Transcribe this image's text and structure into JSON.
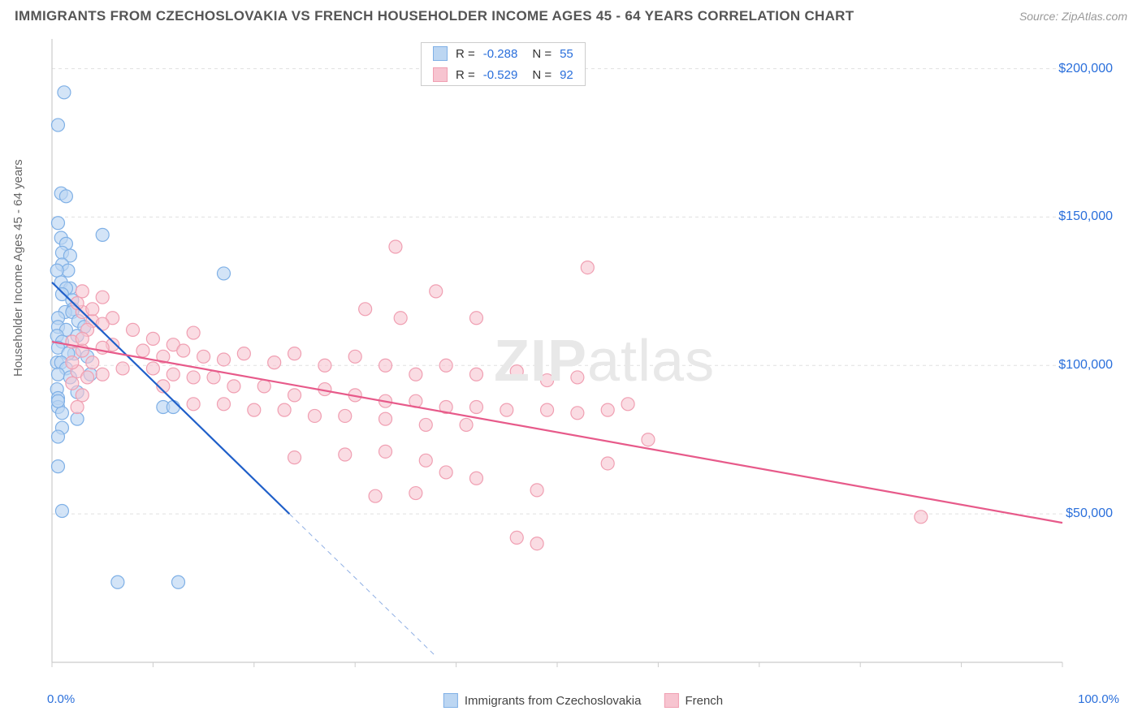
{
  "title": "IMMIGRANTS FROM CZECHOSLOVAKIA VS FRENCH HOUSEHOLDER INCOME AGES 45 - 64 YEARS CORRELATION CHART",
  "source": "Source: ZipAtlas.com",
  "ylabel": "Householder Income Ages 45 - 64 years",
  "watermark_bold": "ZIP",
  "watermark_rest": "atlas",
  "chart": {
    "type": "scatter",
    "background_color": "#ffffff",
    "grid_color": "#e0e0e0",
    "grid_dash": "4,4",
    "axis_color": "#cccccc",
    "xlim": [
      0,
      100
    ],
    "ylim": [
      0,
      210000
    ],
    "x_ticks_minor": [
      0,
      10,
      20,
      30,
      40,
      50,
      60,
      70,
      80,
      90,
      100
    ],
    "x_ticks_labeled": [
      {
        "v": 0,
        "label": "0.0%"
      },
      {
        "v": 100,
        "label": "100.0%"
      }
    ],
    "y_ticks": [
      {
        "v": 50000,
        "label": "$50,000"
      },
      {
        "v": 100000,
        "label": "$100,000"
      },
      {
        "v": 150000,
        "label": "$150,000"
      },
      {
        "v": 200000,
        "label": "$200,000"
      }
    ],
    "series": [
      {
        "name": "Immigrants from Czechoslovakia",
        "short": "series_a",
        "color_fill": "#bcd6f2",
        "color_stroke": "#7fb0e6",
        "line_color": "#1f5fc9",
        "line_width": 2.2,
        "marker_radius": 8,
        "marker_opacity": 0.65,
        "stats": {
          "R": "-0.288",
          "N": "55"
        },
        "trend": {
          "x1": 0,
          "y1": 128000,
          "x2": 23.5,
          "y2": 50000,
          "extend_x2": 38,
          "extend_y2": 2000
        },
        "points": [
          [
            1.2,
            192000
          ],
          [
            0.6,
            181000
          ],
          [
            0.9,
            158000
          ],
          [
            1.4,
            157000
          ],
          [
            0.6,
            148000
          ],
          [
            5.0,
            144000
          ],
          [
            0.9,
            143000
          ],
          [
            1.4,
            141000
          ],
          [
            1.0,
            138000
          ],
          [
            1.8,
            137000
          ],
          [
            1.0,
            134000
          ],
          [
            1.6,
            132000
          ],
          [
            0.5,
            132000
          ],
          [
            17.0,
            131000
          ],
          [
            0.9,
            128000
          ],
          [
            1.8,
            126000
          ],
          [
            1.4,
            126000
          ],
          [
            1.0,
            124000
          ],
          [
            2.0,
            122000
          ],
          [
            2.1,
            119000
          ],
          [
            1.3,
            118000
          ],
          [
            2.0,
            118000
          ],
          [
            0.6,
            116000
          ],
          [
            2.6,
            115000
          ],
          [
            3.2,
            113000
          ],
          [
            0.6,
            113000
          ],
          [
            1.4,
            112000
          ],
          [
            0.5,
            110000
          ],
          [
            2.5,
            110000
          ],
          [
            1.0,
            108000
          ],
          [
            0.6,
            106000
          ],
          [
            2.2,
            104000
          ],
          [
            1.6,
            104000
          ],
          [
            3.5,
            103000
          ],
          [
            0.5,
            101000
          ],
          [
            0.9,
            101000
          ],
          [
            1.4,
            99000
          ],
          [
            0.6,
            97000
          ],
          [
            3.8,
            97000
          ],
          [
            1.8,
            96000
          ],
          [
            0.5,
            92000
          ],
          [
            2.5,
            91000
          ],
          [
            0.6,
            89000
          ],
          [
            11.0,
            86000
          ],
          [
            12.0,
            86000
          ],
          [
            0.6,
            86000
          ],
          [
            1.0,
            84000
          ],
          [
            2.5,
            82000
          ],
          [
            1.0,
            79000
          ],
          [
            0.6,
            76000
          ],
          [
            0.6,
            66000
          ],
          [
            1.0,
            51000
          ],
          [
            6.5,
            27000
          ],
          [
            12.5,
            27000
          ],
          [
            0.6,
            88000
          ]
        ]
      },
      {
        "name": "French",
        "short": "series_b",
        "color_fill": "#f7c4d0",
        "color_stroke": "#f09fb2",
        "line_color": "#e75a8a",
        "line_width": 2.2,
        "marker_radius": 8,
        "marker_opacity": 0.6,
        "stats": {
          "R": "-0.529",
          "N": "92"
        },
        "trend": {
          "x1": 0,
          "y1": 108000,
          "x2": 100,
          "y2": 47000
        },
        "points": [
          [
            34.0,
            140000
          ],
          [
            53.0,
            133000
          ],
          [
            38.0,
            125000
          ],
          [
            31.0,
            119000
          ],
          [
            34.5,
            116000
          ],
          [
            42.0,
            116000
          ],
          [
            6.0,
            116000
          ],
          [
            4.0,
            115000
          ],
          [
            3.0,
            118000
          ],
          [
            5.0,
            114000
          ],
          [
            2.5,
            121000
          ],
          [
            5.0,
            123000
          ],
          [
            3.0,
            125000
          ],
          [
            4.0,
            119000
          ],
          [
            3.5,
            112000
          ],
          [
            8.0,
            112000
          ],
          [
            10.0,
            109000
          ],
          [
            12.0,
            107000
          ],
          [
            14.0,
            111000
          ],
          [
            6.0,
            107000
          ],
          [
            2.0,
            108000
          ],
          [
            5.0,
            106000
          ],
          [
            3.0,
            105000
          ],
          [
            9.0,
            105000
          ],
          [
            11.0,
            103000
          ],
          [
            13.0,
            105000
          ],
          [
            15.0,
            103000
          ],
          [
            17.0,
            102000
          ],
          [
            19.0,
            104000
          ],
          [
            22.0,
            101000
          ],
          [
            24.0,
            104000
          ],
          [
            27.0,
            100000
          ],
          [
            30.0,
            103000
          ],
          [
            33.0,
            100000
          ],
          [
            36.0,
            97000
          ],
          [
            39.0,
            100000
          ],
          [
            42.0,
            97000
          ],
          [
            46.0,
            98000
          ],
          [
            49.0,
            95000
          ],
          [
            52.0,
            96000
          ],
          [
            7.0,
            99000
          ],
          [
            10.0,
            99000
          ],
          [
            12.0,
            97000
          ],
          [
            14.0,
            96000
          ],
          [
            16.0,
            96000
          ],
          [
            18.0,
            93000
          ],
          [
            21.0,
            93000
          ],
          [
            24.0,
            90000
          ],
          [
            27.0,
            92000
          ],
          [
            30.0,
            90000
          ],
          [
            33.0,
            88000
          ],
          [
            36.0,
            88000
          ],
          [
            39.0,
            86000
          ],
          [
            42.0,
            86000
          ],
          [
            45.0,
            85000
          ],
          [
            49.0,
            85000
          ],
          [
            52.0,
            84000
          ],
          [
            55.0,
            85000
          ],
          [
            14.0,
            87000
          ],
          [
            17.0,
            87000
          ],
          [
            20.0,
            85000
          ],
          [
            23.0,
            85000
          ],
          [
            26.0,
            83000
          ],
          [
            29.0,
            83000
          ],
          [
            33.0,
            82000
          ],
          [
            37.0,
            80000
          ],
          [
            41.0,
            80000
          ],
          [
            11.0,
            93000
          ],
          [
            57.0,
            87000
          ],
          [
            59.0,
            75000
          ],
          [
            55.0,
            67000
          ],
          [
            24.0,
            69000
          ],
          [
            29.0,
            70000
          ],
          [
            33.0,
            71000
          ],
          [
            37.0,
            68000
          ],
          [
            39.0,
            64000
          ],
          [
            42.0,
            62000
          ],
          [
            48.0,
            58000
          ],
          [
            48.0,
            40000
          ],
          [
            36.0,
            57000
          ],
          [
            32.0,
            56000
          ],
          [
            46.0,
            42000
          ],
          [
            86.0,
            49000
          ],
          [
            2.5,
            98000
          ],
          [
            4.0,
            101000
          ],
          [
            5.0,
            97000
          ],
          [
            2.0,
            94000
          ],
          [
            3.0,
            90000
          ],
          [
            2.5,
            86000
          ],
          [
            2.0,
            101000
          ],
          [
            3.5,
            96000
          ],
          [
            3.0,
            109000
          ]
        ]
      }
    ],
    "legend_bottom": [
      {
        "label": "Immigrants from Czechoslovakia",
        "fill": "#bcd6f2",
        "stroke": "#7fb0e6"
      },
      {
        "label": "French",
        "fill": "#f7c4d0",
        "stroke": "#f09fb2"
      }
    ],
    "tick_label_color": "#2a6fdb",
    "axis_label_color": "#666666",
    "title_color": "#555555",
    "title_fontsize": 17
  }
}
